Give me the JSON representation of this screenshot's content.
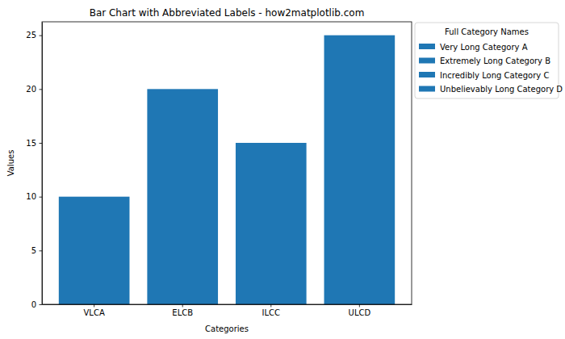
{
  "chart_data": {
    "type": "bar",
    "title": "Bar Chart with Abbreviated Labels - how2matplotlib.com",
    "x_label": "Categories",
    "y_label": "Values",
    "categories": [
      "VLCA",
      "ELCB",
      "ILCC",
      "ULCD"
    ],
    "full_names": [
      "Very Long Category A",
      "Extremely Long Category B",
      "Incredibly Long Category C",
      "Unbelievably Long Category D"
    ],
    "values": [
      10,
      20,
      15,
      25
    ],
    "color": "#1f77b4",
    "ylim": [
      0,
      26.25
    ],
    "yticks": [
      0,
      5,
      10,
      15,
      20,
      25
    ],
    "grid": false,
    "legend": "outside upper right",
    "legend_title": "Full Category Names"
  }
}
